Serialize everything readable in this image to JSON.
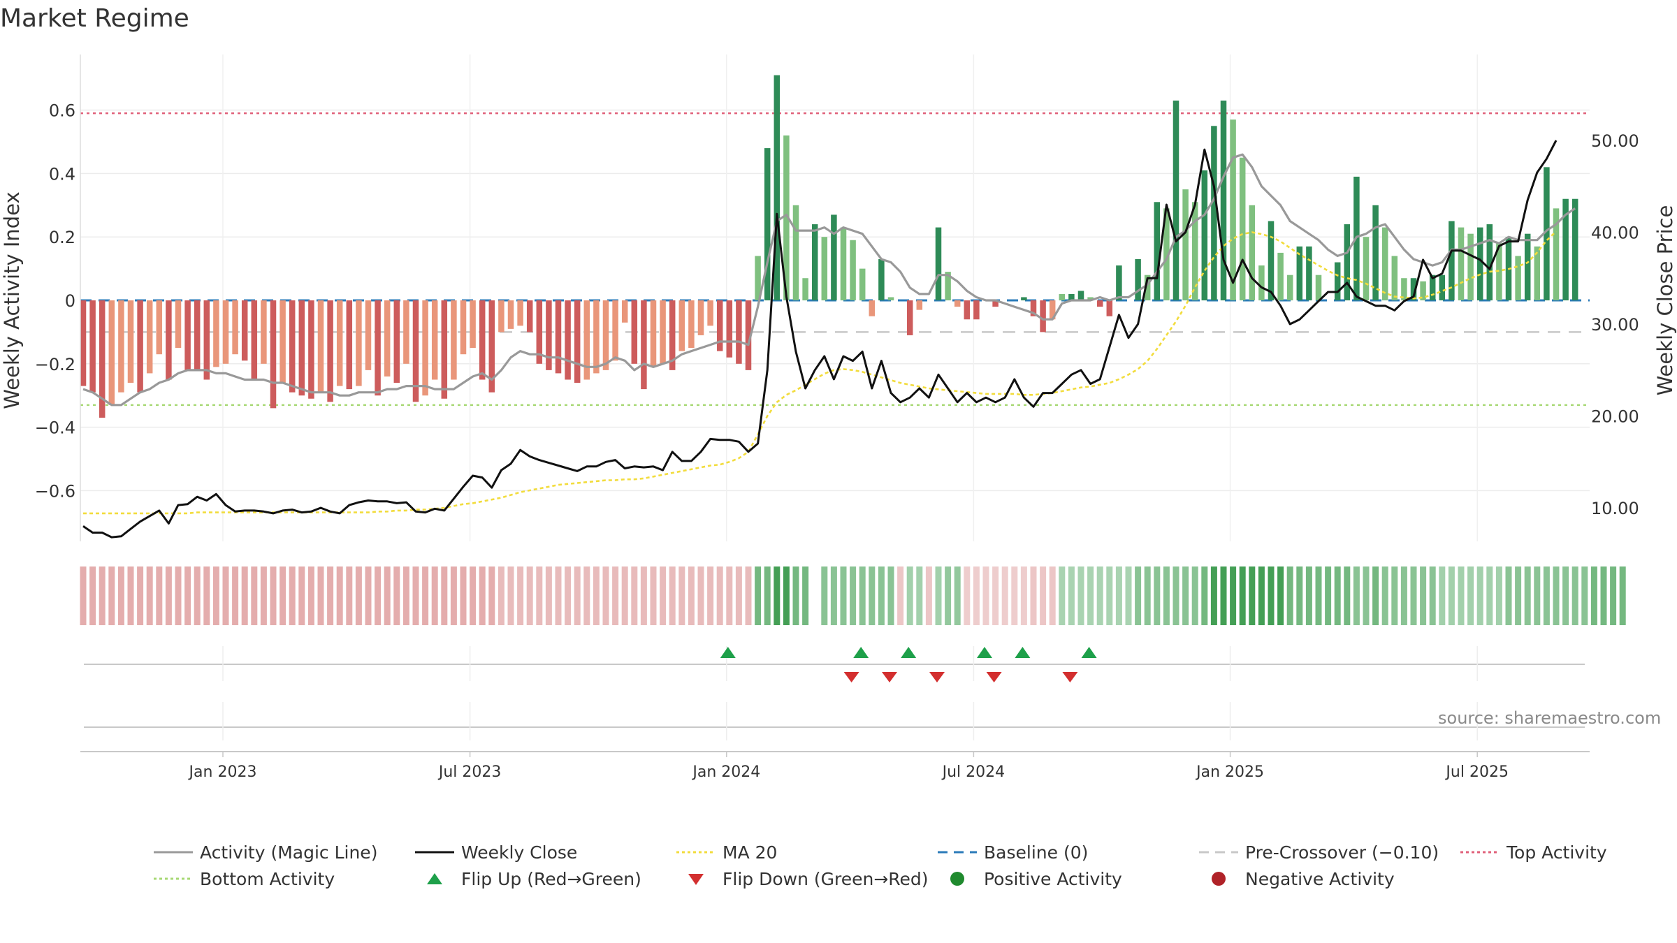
{
  "title": "Market Regime",
  "source": "source: sharemaestro.com",
  "chart_data": {
    "type": "bar",
    "title": "Market Regime",
    "left_axis": {
      "label": "Weekly Activity Index",
      "ticks": [
        "0.6",
        "0.4",
        "0.2",
        "0",
        "−0.2",
        "−0.4",
        "−0.6"
      ],
      "tick_values": [
        0.6,
        0.4,
        0.2,
        0,
        -0.2,
        -0.4,
        -0.6
      ],
      "range": [
        -0.77,
        0.77
      ]
    },
    "right_axis": {
      "label": "Weekly Close Price",
      "ticks": [
        "50.00",
        "40.00",
        "30.00",
        "20.00",
        "10.00"
      ],
      "tick_values": [
        50,
        40,
        30,
        20,
        10
      ],
      "range": [
        5,
        53
      ]
    },
    "x_axis": {
      "tick_labels": [
        "Jan 2023",
        "Jul 2023",
        "Jan 2024",
        "Jul 2024",
        "Jan 2025",
        "Jul 2025"
      ],
      "tick_weeks": [
        15,
        41,
        68,
        94,
        121,
        147
      ],
      "start_week_count": 158
    },
    "reference_lines": {
      "top_activity": 0.59,
      "bottom_activity": -0.33,
      "pre_crossover": -0.1,
      "baseline": 0
    },
    "activity": [
      -0.27,
      -0.29,
      -0.37,
      -0.33,
      -0.29,
      -0.26,
      -0.29,
      -0.23,
      -0.17,
      -0.25,
      -0.15,
      -0.22,
      -0.22,
      -0.25,
      -0.21,
      -0.2,
      -0.17,
      -0.19,
      -0.25,
      -0.2,
      -0.34,
      -0.26,
      -0.29,
      -0.3,
      -0.31,
      -0.29,
      -0.32,
      -0.27,
      -0.28,
      -0.27,
      -0.22,
      -0.3,
      -0.24,
      -0.26,
      -0.2,
      -0.32,
      -0.3,
      -0.25,
      -0.31,
      -0.25,
      -0.17,
      -0.15,
      -0.25,
      -0.29,
      -0.1,
      -0.09,
      -0.08,
      -0.1,
      -0.2,
      -0.22,
      -0.23,
      -0.25,
      -0.26,
      -0.25,
      -0.23,
      -0.22,
      -0.19,
      -0.07,
      -0.2,
      -0.28,
      -0.21,
      -0.2,
      -0.22,
      -0.16,
      -0.15,
      -0.11,
      -0.08,
      -0.16,
      -0.18,
      -0.2,
      -0.22,
      0.14,
      0.48,
      0.71,
      0.52,
      0.3,
      0.07,
      0.24,
      0.2,
      0.27,
      0.23,
      0.19,
      0.1,
      -0.05,
      0.13,
      0.01,
      0.0,
      -0.11,
      -0.03,
      0.0,
      0.23,
      0.09,
      -0.02,
      -0.06,
      -0.06,
      0.0,
      -0.02,
      0.0,
      0.0,
      0.01,
      -0.05,
      -0.1,
      -0.06,
      0.02,
      0.02,
      0.03,
      0.01,
      -0.02,
      -0.05,
      0.11,
      0.0,
      0.13,
      0.08,
      0.31,
      0.29,
      0.63,
      0.35,
      0.31,
      0.41,
      0.55,
      0.63,
      0.57,
      0.45,
      0.3,
      0.11,
      0.25,
      0.15,
      0.08,
      0.17,
      0.17,
      0.08,
      0.0,
      0.12,
      0.24,
      0.39,
      0.2,
      0.3,
      0.23,
      0.14,
      0.07,
      0.07,
      0.06,
      0.08,
      0.08,
      0.25,
      0.23,
      0.21,
      0.23,
      0.24,
      0.18,
      0.2,
      0.14,
      0.21,
      0.17,
      0.42,
      0.29,
      0.32,
      0.32
    ],
    "magic_line": [
      -0.28,
      -0.29,
      -0.31,
      -0.33,
      -0.33,
      -0.31,
      -0.29,
      -0.28,
      -0.26,
      -0.25,
      -0.23,
      -0.22,
      -0.22,
      -0.22,
      -0.23,
      -0.23,
      -0.24,
      -0.25,
      -0.25,
      -0.25,
      -0.26,
      -0.26,
      -0.27,
      -0.28,
      -0.29,
      -0.29,
      -0.29,
      -0.3,
      -0.3,
      -0.29,
      -0.29,
      -0.29,
      -0.28,
      -0.28,
      -0.27,
      -0.27,
      -0.27,
      -0.28,
      -0.28,
      -0.28,
      -0.26,
      -0.24,
      -0.23,
      -0.25,
      -0.22,
      -0.18,
      -0.16,
      -0.17,
      -0.17,
      -0.18,
      -0.18,
      -0.19,
      -0.2,
      -0.21,
      -0.21,
      -0.2,
      -0.18,
      -0.19,
      -0.22,
      -0.2,
      -0.21,
      -0.2,
      -0.19,
      -0.17,
      -0.16,
      -0.15,
      -0.14,
      -0.13,
      -0.13,
      -0.13,
      -0.14,
      -0.02,
      0.12,
      0.25,
      0.27,
      0.22,
      0.22,
      0.22,
      0.23,
      0.21,
      0.23,
      0.22,
      0.21,
      0.17,
      0.13,
      0.12,
      0.09,
      0.04,
      0.02,
      0.02,
      0.08,
      0.08,
      0.06,
      0.03,
      0.01,
      0.0,
      0.0,
      -0.01,
      -0.02,
      -0.03,
      -0.04,
      -0.06,
      -0.06,
      -0.01,
      0.0,
      0.0,
      0.0,
      0.01,
      0.0,
      0.01,
      0.01,
      0.03,
      0.05,
      0.09,
      0.13,
      0.2,
      0.22,
      0.25,
      0.27,
      0.32,
      0.39,
      0.45,
      0.46,
      0.42,
      0.36,
      0.33,
      0.3,
      0.25,
      0.23,
      0.21,
      0.19,
      0.16,
      0.14,
      0.15,
      0.2,
      0.21,
      0.23,
      0.24,
      0.2,
      0.16,
      0.13,
      0.12,
      0.11,
      0.12,
      0.16,
      0.16,
      0.17,
      0.18,
      0.19,
      0.18,
      0.2,
      0.19,
      0.19,
      0.19,
      0.22,
      0.24,
      0.27,
      0.29
    ],
    "weekly_close": [
      8.0,
      7.3,
      7.3,
      6.8,
      6.9,
      7.7,
      8.5,
      9.1,
      9.7,
      8.3,
      10.3,
      10.4,
      11.2,
      10.8,
      11.5,
      10.3,
      9.6,
      9.7,
      9.7,
      9.6,
      9.4,
      9.7,
      9.8,
      9.5,
      9.6,
      10.0,
      9.6,
      9.4,
      10.3,
      10.6,
      10.8,
      10.7,
      10.7,
      10.5,
      10.6,
      9.6,
      9.5,
      9.9,
      9.7,
      11.0,
      12.3,
      13.5,
      13.3,
      12.2,
      14.1,
      14.8,
      16.3,
      15.6,
      15.2,
      14.9,
      14.6,
      14.3,
      14.0,
      14.5,
      14.5,
      15.0,
      15.2,
      14.3,
      14.5,
      14.4,
      14.5,
      14.1,
      16.1,
      15.1,
      15.1,
      16.1,
      17.5,
      17.4,
      17.4,
      17.2,
      16.1,
      17.0,
      25.0,
      42.0,
      33.0,
      27.0,
      23.0,
      25.0,
      26.5,
      24.0,
      26.5,
      26.0,
      27.0,
      23.0,
      26.0,
      22.5,
      21.5,
      22.0,
      23.0,
      22.0,
      24.5,
      23.0,
      21.5,
      22.5,
      21.5,
      22.0,
      21.5,
      22.0,
      24.0,
      22.0,
      21.0,
      22.5,
      22.5,
      23.5,
      24.5,
      25.0,
      23.5,
      24.0,
      27.5,
      31.0,
      28.5,
      30.0,
      35.0,
      35.0,
      43.0,
      39.0,
      40.0,
      43.0,
      49.0,
      45.0,
      37.0,
      34.5,
      37.0,
      35.0,
      34.0,
      33.5,
      32.0,
      30.0,
      30.5,
      31.5,
      32.5,
      33.5,
      33.5,
      34.5,
      33.0,
      32.5,
      32.0,
      32.0,
      31.5,
      32.5,
      33.0,
      37.0,
      35.0,
      35.5,
      38.0,
      38.0,
      37.5,
      37.0,
      36.0,
      38.5,
      39.0,
      39.0,
      43.5,
      46.5,
      48.0,
      50.0
    ],
    "ma20": [
      9.4,
      9.4,
      9.4,
      9.4,
      9.4,
      9.4,
      9.4,
      9.4,
      9.4,
      9.4,
      9.4,
      9.4,
      9.5,
      9.5,
      9.5,
      9.5,
      9.5,
      9.5,
      9.5,
      9.5,
      9.5,
      9.5,
      9.5,
      9.5,
      9.5,
      9.5,
      9.5,
      9.5,
      9.5,
      9.5,
      9.5,
      9.6,
      9.6,
      9.7,
      9.7,
      9.8,
      9.8,
      9.9,
      10.0,
      10.2,
      10.4,
      10.5,
      10.7,
      10.9,
      11.1,
      11.4,
      11.7,
      11.9,
      12.1,
      12.3,
      12.5,
      12.6,
      12.7,
      12.8,
      12.9,
      13.0,
      13.0,
      13.1,
      13.1,
      13.2,
      13.4,
      13.6,
      13.8,
      14.0,
      14.2,
      14.4,
      14.6,
      14.7,
      15.0,
      15.4,
      16.1,
      18.0,
      20.0,
      21.5,
      22.3,
      22.8,
      23.4,
      24.0,
      24.6,
      25.0,
      25.1,
      25.0,
      24.8,
      24.5,
      24.2,
      23.9,
      23.6,
      23.4,
      23.2,
      23.0,
      22.9,
      22.8,
      22.7,
      22.6,
      22.5,
      22.4,
      22.4,
      22.4,
      22.4,
      22.3,
      22.3,
      22.4,
      22.5,
      22.7,
      22.9,
      23.1,
      23.2,
      23.4,
      23.6,
      24.0,
      24.5,
      25.1,
      26.0,
      27.3,
      28.8,
      30.3,
      32.0,
      34.0,
      35.8,
      37.3,
      38.5,
      39.3,
      39.8,
      40.0,
      39.8,
      39.5,
      39.0,
      38.3,
      37.6,
      37.0,
      36.4,
      35.8,
      35.3,
      35.0,
      34.8,
      34.4,
      33.9,
      33.4,
      33.0,
      32.9,
      32.8,
      32.9,
      33.2,
      33.6,
      34.0,
      34.5,
      35.0,
      35.4,
      35.7,
      35.8,
      36.0,
      36.3,
      36.7,
      37.8,
      39.1,
      40.1
    ],
    "regime_strip": [
      -0.6,
      -0.6,
      -0.6,
      -0.6,
      -0.6,
      -0.6,
      -0.6,
      -0.6,
      -0.6,
      -0.6,
      -0.6,
      -0.6,
      -0.6,
      -0.6,
      -0.6,
      -0.6,
      -0.6,
      -0.6,
      -0.6,
      -0.6,
      -0.6,
      -0.6,
      -0.6,
      -0.6,
      -0.6,
      -0.6,
      -0.6,
      -0.6,
      -0.6,
      -0.6,
      -0.6,
      -0.6,
      -0.6,
      -0.6,
      -0.6,
      -0.6,
      -0.6,
      -0.6,
      -0.6,
      -0.6,
      -0.6,
      -0.6,
      -0.6,
      -0.6,
      -0.45,
      -0.45,
      -0.45,
      -0.45,
      -0.45,
      -0.45,
      -0.45,
      -0.45,
      -0.45,
      -0.45,
      -0.45,
      -0.45,
      -0.45,
      -0.45,
      -0.45,
      -0.45,
      -0.45,
      -0.45,
      -0.45,
      -0.45,
      -0.45,
      -0.45,
      -0.45,
      -0.45,
      -0.45,
      -0.45,
      -0.45,
      0.6,
      0.6,
      0.9,
      0.9,
      0.6,
      0.6,
      null,
      0.45,
      0.45,
      0.45,
      0.45,
      0.45,
      0.45,
      0.45,
      0.45,
      -0.3,
      0.3,
      0.3,
      -0.3,
      0.3,
      0.4,
      0.4,
      -0.25,
      -0.25,
      -0.25,
      -0.25,
      -0.25,
      -0.25,
      -0.25,
      -0.3,
      -0.3,
      -0.3,
      0.25,
      0.25,
      0.25,
      0.25,
      0.25,
      0.25,
      0.25,
      0.25,
      0.45,
      0.45,
      0.45,
      0.45,
      0.45,
      0.45,
      0.45,
      0.6,
      0.9,
      0.9,
      0.9,
      0.9,
      0.9,
      0.9,
      0.9,
      0.9,
      0.6,
      0.6,
      0.6,
      0.6,
      0.6,
      0.6,
      0.6,
      0.45,
      0.45,
      0.6,
      0.45,
      0.45,
      0.45,
      0.45,
      0.45,
      0.45,
      0.3,
      0.3,
      0.3,
      0.3,
      0.3,
      0.3,
      0.3,
      0.45,
      0.45,
      0.45,
      0.45,
      0.45,
      0.45,
      0.45,
      0.45,
      0.45,
      0.6,
      0.6,
      0.6,
      0.6
    ],
    "flip_up_weeks": [
      68,
      82,
      87,
      95,
      99,
      106
    ],
    "flip_down_weeks": [
      81,
      85,
      90,
      96,
      104
    ],
    "legend": [
      {
        "label": "Activity (Magic Line)",
        "kind": "line",
        "color": "#999999"
      },
      {
        "label": "Weekly Close",
        "kind": "line",
        "color": "#111111"
      },
      {
        "label": "MA 20",
        "kind": "dotted",
        "color": "#f2dc3c"
      },
      {
        "label": "Baseline (0)",
        "kind": "dashed",
        "color": "#2b7bb9"
      },
      {
        "label": "Pre-Crossover (−0.10)",
        "kind": "dashed",
        "color": "#c8c8c8"
      },
      {
        "label": "Top Activity",
        "kind": "dotted",
        "color": "#e0607a"
      },
      {
        "label": "Bottom Activity",
        "kind": "dotted",
        "color": "#a7d874"
      },
      {
        "label": "Flip Up (Red→Green)",
        "kind": "triangle-up",
        "color": "#1ea04a"
      },
      {
        "label": "Flip Down (Green→Red)",
        "kind": "triangle-down",
        "color": "#d32f2f"
      },
      {
        "label": "Positive Activity",
        "kind": "circle",
        "color": "#1f8a2e"
      },
      {
        "label": "Negative Activity",
        "kind": "circle",
        "color": "#b02228"
      }
    ],
    "colors": {
      "pos_strong": "#2e8b57",
      "pos_weak": "#7fc07f",
      "neg_strong": "#cd5c5c",
      "neg_weak": "#e9967a",
      "magic_line": "#999999",
      "close": "#111111",
      "ma20": "#f2dc3c",
      "baseline": "#2b7bb9",
      "pre_crossover": "#c8c8c8",
      "top_activity": "#e0607a",
      "bottom_activity": "#a7d874",
      "flip_up": "#1ea04a",
      "flip_down": "#d32f2f"
    }
  }
}
